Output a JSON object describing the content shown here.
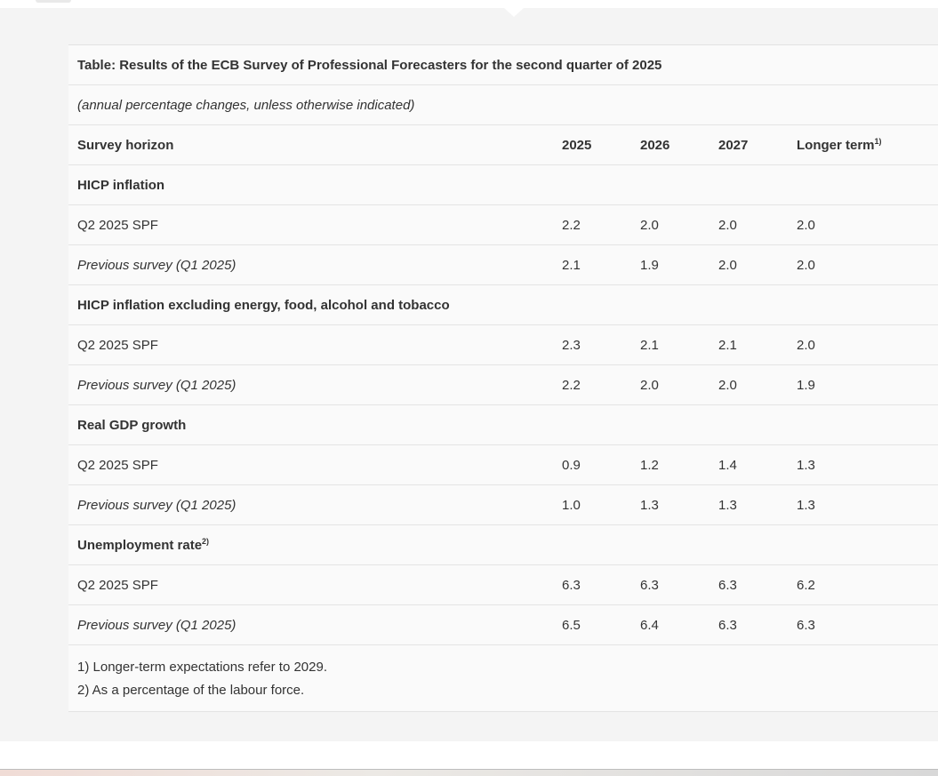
{
  "table": {
    "title": "Table: Results of the ECB Survey of Professional Forecasters for the second quarter of 2025",
    "subtitle": "(annual percentage changes, unless otherwise indicated)",
    "header": {
      "label": "Survey horizon",
      "years": [
        "2025",
        "2026",
        "2027"
      ],
      "longer_term": "Longer term",
      "longer_term_sup": "1)"
    },
    "sections": [
      {
        "title": "HICP inflation",
        "sup": "",
        "rows": [
          {
            "label": "Q2 2025 SPF",
            "values": [
              "2.2",
              "2.0",
              "2.0",
              "2.0"
            ]
          },
          {
            "label": "Previous survey (Q1 2025)",
            "values": [
              "2.1",
              "1.9",
              "2.0",
              "2.0"
            ]
          }
        ]
      },
      {
        "title": "HICP inflation excluding energy, food, alcohol and tobacco",
        "sup": "",
        "rows": [
          {
            "label": "Q2 2025 SPF",
            "values": [
              "2.3",
              "2.1",
              "2.1",
              "2.0"
            ]
          },
          {
            "label": "Previous survey (Q1 2025)",
            "values": [
              "2.2",
              "2.0",
              "2.0",
              "1.9"
            ]
          }
        ]
      },
      {
        "title": "Real GDP growth",
        "sup": "",
        "rows": [
          {
            "label": "Q2 2025 SPF",
            "values": [
              "0.9",
              "1.2",
              "1.4",
              "1.3"
            ]
          },
          {
            "label": "Previous survey (Q1 2025)",
            "values": [
              "1.0",
              "1.3",
              "1.3",
              "1.3"
            ]
          }
        ]
      },
      {
        "title": "Unemployment rate",
        "sup": "2)",
        "rows": [
          {
            "label": "Q2 2025 SPF",
            "values": [
              "6.3",
              "6.3",
              "6.3",
              "6.2"
            ]
          },
          {
            "label": "Previous survey (Q1 2025)",
            "values": [
              "6.5",
              "6.4",
              "6.3",
              "6.3"
            ]
          }
        ]
      }
    ],
    "footnotes": [
      "1) Longer-term expectations refer to 2029.",
      "2) As a percentage of the labour force."
    ]
  }
}
